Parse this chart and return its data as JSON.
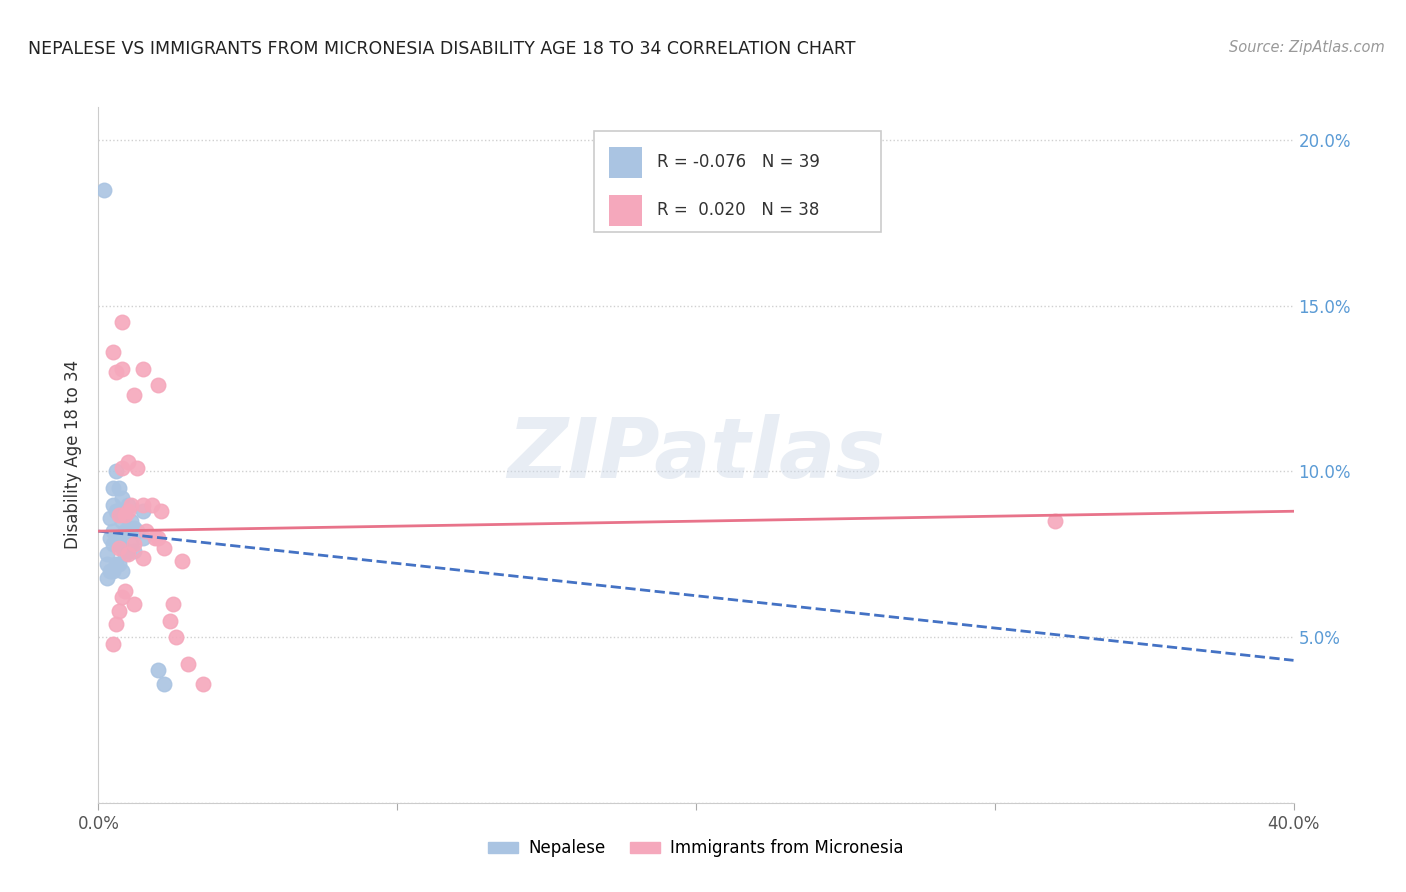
{
  "title": "NEPALESE VS IMMIGRANTS FROM MICRONESIA DISABILITY AGE 18 TO 34 CORRELATION CHART",
  "source": "Source: ZipAtlas.com",
  "ylabel": "Disability Age 18 to 34",
  "xlim": [
    0.0,
    0.4
  ],
  "ylim": [
    0.0,
    0.21
  ],
  "nepalese_R": -0.076,
  "nepalese_N": 39,
  "micronesia_R": 0.02,
  "micronesia_N": 38,
  "nepalese_color": "#aac4e2",
  "micronesia_color": "#f5a8bc",
  "nepalese_line_color": "#4472c4",
  "micronesia_line_color": "#e8738a",
  "nepalese_x": [
    0.002,
    0.003,
    0.003,
    0.003,
    0.004,
    0.004,
    0.004,
    0.005,
    0.005,
    0.005,
    0.005,
    0.005,
    0.006,
    0.006,
    0.006,
    0.006,
    0.007,
    0.007,
    0.007,
    0.007,
    0.008,
    0.008,
    0.008,
    0.008,
    0.009,
    0.009,
    0.009,
    0.01,
    0.01,
    0.01,
    0.011,
    0.011,
    0.012,
    0.012,
    0.013,
    0.015,
    0.015,
    0.02,
    0.022
  ],
  "nepalese_y": [
    0.185,
    0.075,
    0.072,
    0.068,
    0.086,
    0.08,
    0.07,
    0.095,
    0.09,
    0.082,
    0.078,
    0.07,
    0.1,
    0.088,
    0.079,
    0.072,
    0.095,
    0.088,
    0.08,
    0.072,
    0.092,
    0.085,
    0.077,
    0.07,
    0.088,
    0.082,
    0.075,
    0.09,
    0.083,
    0.076,
    0.085,
    0.078,
    0.083,
    0.076,
    0.082,
    0.088,
    0.08,
    0.04,
    0.036
  ],
  "micronesia_x": [
    0.005,
    0.005,
    0.006,
    0.006,
    0.007,
    0.007,
    0.007,
    0.008,
    0.008,
    0.008,
    0.008,
    0.009,
    0.009,
    0.01,
    0.01,
    0.01,
    0.011,
    0.012,
    0.012,
    0.012,
    0.013,
    0.015,
    0.015,
    0.015,
    0.016,
    0.018,
    0.019,
    0.02,
    0.02,
    0.021,
    0.022,
    0.024,
    0.025,
    0.026,
    0.028,
    0.03,
    0.32,
    0.035
  ],
  "micronesia_y": [
    0.136,
    0.048,
    0.13,
    0.054,
    0.058,
    0.087,
    0.077,
    0.145,
    0.131,
    0.101,
    0.062,
    0.087,
    0.064,
    0.103,
    0.088,
    0.075,
    0.09,
    0.123,
    0.078,
    0.06,
    0.101,
    0.131,
    0.09,
    0.074,
    0.082,
    0.09,
    0.08,
    0.126,
    0.08,
    0.088,
    0.077,
    0.055,
    0.06,
    0.05,
    0.073,
    0.042,
    0.085,
    0.036
  ],
  "nep_line_x0": 0.0,
  "nep_line_y0": 0.082,
  "nep_line_x1": 0.4,
  "nep_line_y1": 0.043,
  "mic_line_x0": 0.0,
  "mic_line_y0": 0.082,
  "mic_line_x1": 0.4,
  "mic_line_y1": 0.088
}
